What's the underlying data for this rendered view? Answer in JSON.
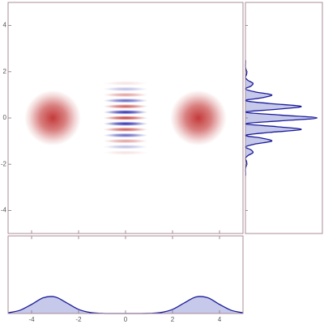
{
  "chart_data": [
    {
      "type": "density",
      "xlim": [
        -5,
        5
      ],
      "ylim": [
        -5,
        5
      ],
      "xticks": [
        -4,
        -2,
        0,
        2,
        4
      ],
      "yticks": [
        -4,
        -2,
        0,
        2,
        4
      ],
      "positive_color": "#c43a3a",
      "negative_color": "#1c1ca8",
      "series": [
        {
          "x": [
            -3.1,
            3.1
          ],
          "y": [
            0,
            0
          ],
          "values": [
            1,
            1
          ],
          "width": 2.4,
          "height": 2.4
        },
        {
          "x": [
            0,
            0,
            0,
            0,
            0,
            0,
            0,
            0,
            0,
            0,
            0,
            0,
            0
          ],
          "y": [
            -1.5,
            -1.25,
            -1,
            -0.75,
            -0.5,
            -0.25,
            0,
            0.25,
            0.5,
            0.75,
            1,
            1.25,
            1.5
          ],
          "values": [
            0.15,
            -0.3,
            0.5,
            -0.7,
            0.85,
            -0.95,
            1,
            -0.95,
            0.85,
            -0.7,
            0.5,
            -0.3,
            0.15
          ],
          "width": 1.9,
          "height": 0.2
        }
      ]
    },
    {
      "type": "area",
      "orientation": "vertical",
      "xlim": [
        0,
        2.15
      ],
      "ylim": [
        -5,
        5
      ],
      "yticks": [
        -4,
        -2,
        0,
        2,
        4
      ],
      "color": "#1a1a99",
      "fill": "#c6c9ea",
      "y": [
        -2.5,
        -2.375,
        -2.25,
        -2.125,
        -2,
        -1.875,
        -1.75,
        -1.625,
        -1.5,
        -1.375,
        -1.25,
        -1.125,
        -1,
        -0.875,
        -0.75,
        -0.625,
        -0.5,
        -0.375,
        -0.25,
        -0.125,
        0,
        0.125,
        0.25,
        0.375,
        0.5,
        0.625,
        0.75,
        0.875,
        1,
        1.125,
        1.25,
        1.375,
        1.5,
        1.625,
        1.75,
        1.875,
        2,
        2.125,
        2.25,
        2.375,
        2.5
      ],
      "values": [
        0.004,
        0.004,
        0,
        0.011,
        0.037,
        0.03,
        0,
        0.071,
        0.211,
        0.151,
        0,
        0.282,
        0.736,
        0.465,
        0,
        0.677,
        1.558,
        0.869,
        0,
        0.984,
        2,
        0.984,
        0,
        0.869,
        1.558,
        0.677,
        0,
        0.465,
        0.736,
        0.282,
        0,
        0.151,
        0.211,
        0.071,
        0,
        0.03,
        0.037,
        0.011,
        0,
        0.004,
        0.004
      ]
    },
    {
      "type": "area",
      "orientation": "horizontal",
      "xlim": [
        -5,
        5
      ],
      "ylim": [
        0,
        4.5
      ],
      "xticks": [
        -4,
        -2,
        0,
        2,
        4
      ],
      "color": "#1a1a99",
      "fill": "#c6c9ea",
      "x": [
        -5,
        -4.5,
        -4,
        -3.5,
        -3,
        -2.5,
        -2,
        -1.5,
        -1,
        -0.5,
        0,
        0.5,
        1,
        1.5,
        2,
        2.5,
        3,
        3.5,
        4,
        4.5,
        5
      ],
      "values": [
        0.039,
        0.185,
        0.527,
        0.914,
        0.961,
        0.613,
        0.237,
        0.056,
        0.008,
        0.001,
        0,
        0.001,
        0.008,
        0.056,
        0.237,
        0.613,
        0.961,
        0.914,
        0.527,
        0.185,
        0.039
      ]
    }
  ]
}
